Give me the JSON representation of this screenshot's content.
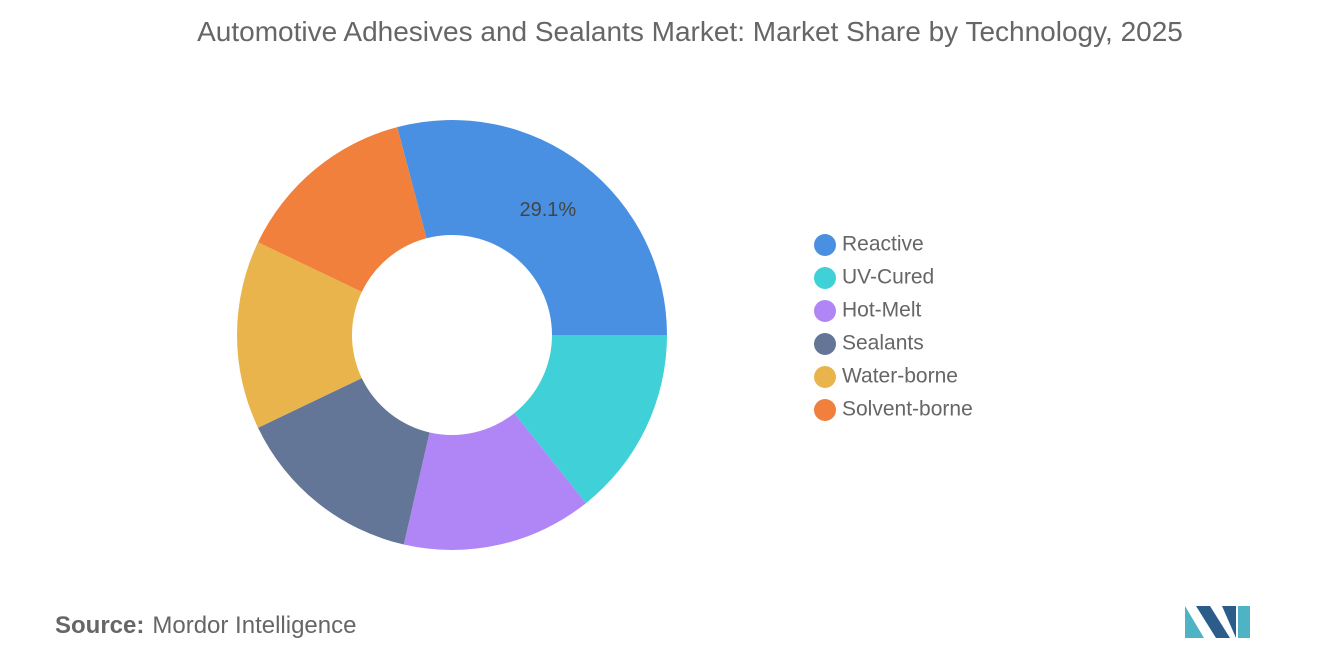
{
  "chart_data": {
    "type": "donut",
    "title": "Automotive Adhesives and Sealants Market: Market Share by Technology, 2025",
    "categories": [
      "Reactive",
      "UV-Cured",
      "Hot-Melt",
      "Sealants",
      "Water-borne",
      "Solvent-borne"
    ],
    "values": [
      29.1,
      14.3,
      14.3,
      14.3,
      14.2,
      13.8
    ],
    "value_labels": [
      "29.1%",
      null,
      null,
      null,
      null,
      null
    ],
    "colors": [
      "#4a90e2",
      "#3fd0d8",
      "#b085f5",
      "#647697",
      "#e9b44c",
      "#f0803c"
    ],
    "legend": "right"
  },
  "source": {
    "label": "Source:",
    "text": "Mordor Intelligence"
  }
}
